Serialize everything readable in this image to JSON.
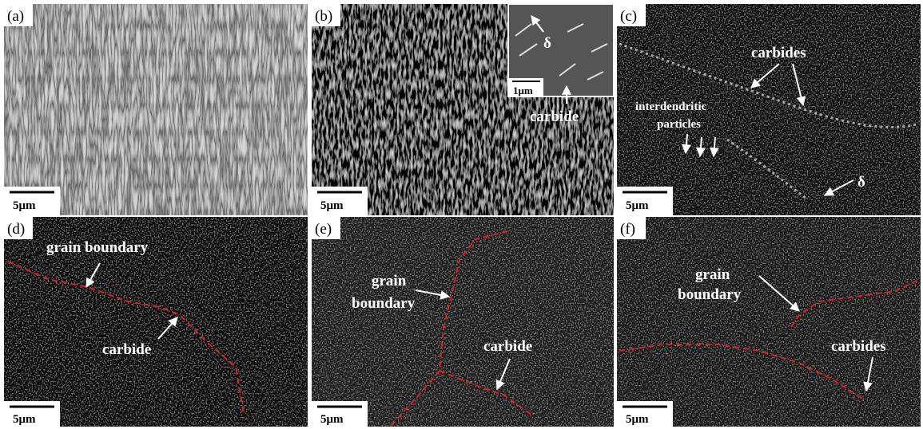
{
  "panels": [
    {
      "label": "(a)",
      "scale_bar": "5μm"
    },
    {
      "label": "(b)",
      "scale_bar": "5μm",
      "inset_label": "δ",
      "inset_scale_bar": "1μm",
      "annotations": [
        "carbide"
      ]
    },
    {
      "label": "(c)",
      "scale_bar": "5μm",
      "annotations": [
        "carbides",
        "interdendritic",
        "particles",
        "δ"
      ]
    },
    {
      "label": "(d)",
      "scale_bar": "5μm",
      "annotations": [
        "grain boundary",
        "carbide"
      ]
    },
    {
      "label": "(e)",
      "scale_bar": "5μm",
      "annotations": [
        "grain",
        "boundary",
        "carbide"
      ]
    },
    {
      "label": "(f)",
      "scale_bar": "5μm",
      "annotations": [
        "grain",
        "boundary",
        "carbides"
      ]
    }
  ]
}
